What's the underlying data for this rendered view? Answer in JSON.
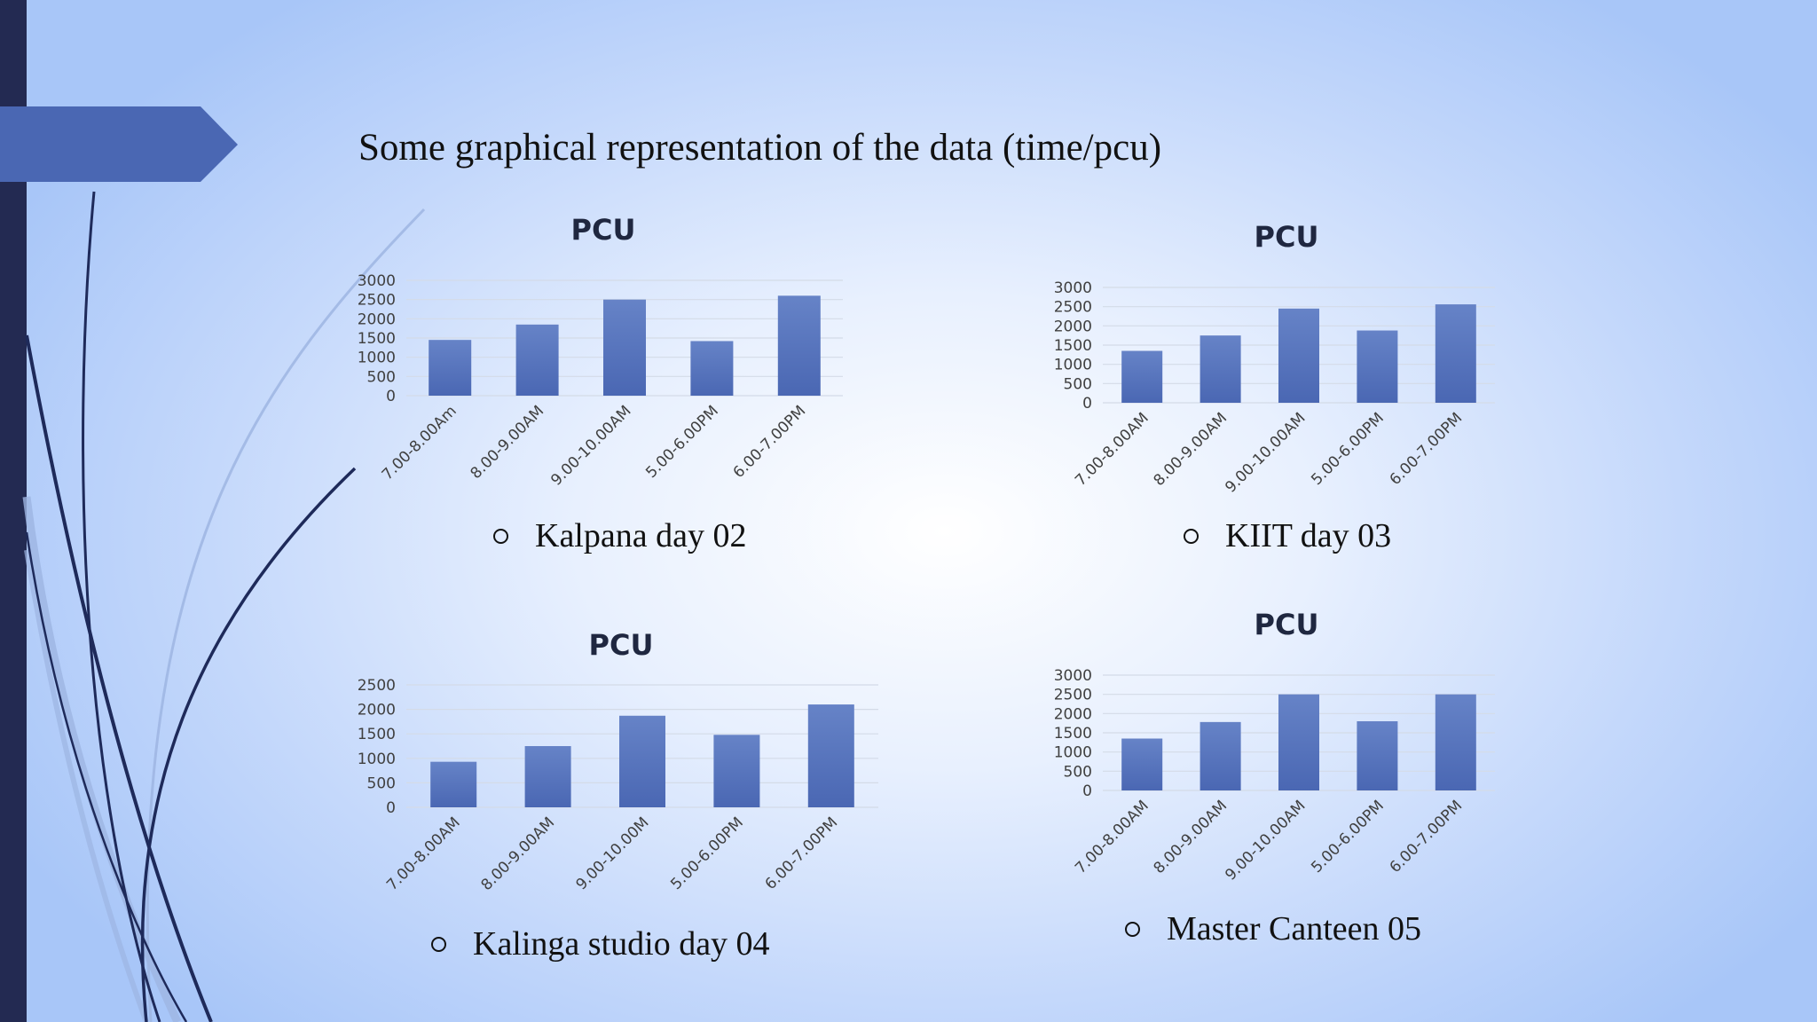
{
  "slide": {
    "title": "Some graphical representation of the data (time/pcu)",
    "colors": {
      "bar": "#4a67b3",
      "bar_light": "#6683c7",
      "arrow": "#4a67b3",
      "left_band": "#232a52",
      "curve_dark": "#1e2a5a",
      "curve_light": "#9db5e2"
    }
  },
  "charts": [
    {
      "caption": "Kalpana day 02"
    },
    {
      "caption": "KIIT day 03"
    },
    {
      "caption": "Kalinga studio day 04"
    },
    {
      "caption": "Master Canteen 05"
    }
  ],
  "chart_data": [
    {
      "type": "bar",
      "title": "PCU",
      "categories": [
        "7.00-8.00Am",
        "8.00-9.00AM",
        "9.00-10.00AM",
        "5.00-6.00PM",
        "6.00-7.00PM"
      ],
      "values": [
        1450,
        1850,
        2500,
        1420,
        2600
      ],
      "ylim": [
        0,
        3000
      ],
      "yticks": [
        "0",
        "500",
        "1000",
        "1500",
        "2000",
        "2500",
        "3000"
      ],
      "grid": true,
      "legend": "none"
    },
    {
      "type": "bar",
      "title": "PCU",
      "categories": [
        "7.00-8.00AM",
        "8.00-9.00AM",
        "9.00-10.00AM",
        "5.00-6.00PM",
        "6.00-7.00PM"
      ],
      "values": [
        1350,
        1750,
        2450,
        1880,
        2560
      ],
      "ylim": [
        0,
        3000
      ],
      "yticks": [
        "0",
        "500",
        "1000",
        "1500",
        "2000",
        "2500",
        "3000"
      ],
      "grid": true,
      "legend": "none"
    },
    {
      "type": "bar",
      "title": "PCU",
      "categories": [
        "7.00-8.00AM",
        "8.00-9.00AM",
        "9.00-10.00M",
        "5.00-6.00PM",
        "6.00-7.00PM"
      ],
      "values": [
        930,
        1250,
        1870,
        1480,
        2100
      ],
      "ylim": [
        0,
        2500
      ],
      "yticks": [
        "0",
        "500",
        "1000",
        "1500",
        "2000",
        "2500"
      ],
      "grid": true,
      "legend": "none"
    },
    {
      "type": "bar",
      "title": "PCU",
      "categories": [
        "7.00-8.00AM",
        "8.00-9.00AM",
        "9.00-10.00AM",
        "5.00-6.00PM",
        "6.00-7.00PM"
      ],
      "values": [
        1350,
        1780,
        2500,
        1800,
        2500
      ],
      "ylim": [
        0,
        3000
      ],
      "yticks": [
        "0",
        "500",
        "1000",
        "1500",
        "2000",
        "2500",
        "3000"
      ],
      "grid": true,
      "legend": "none"
    }
  ]
}
